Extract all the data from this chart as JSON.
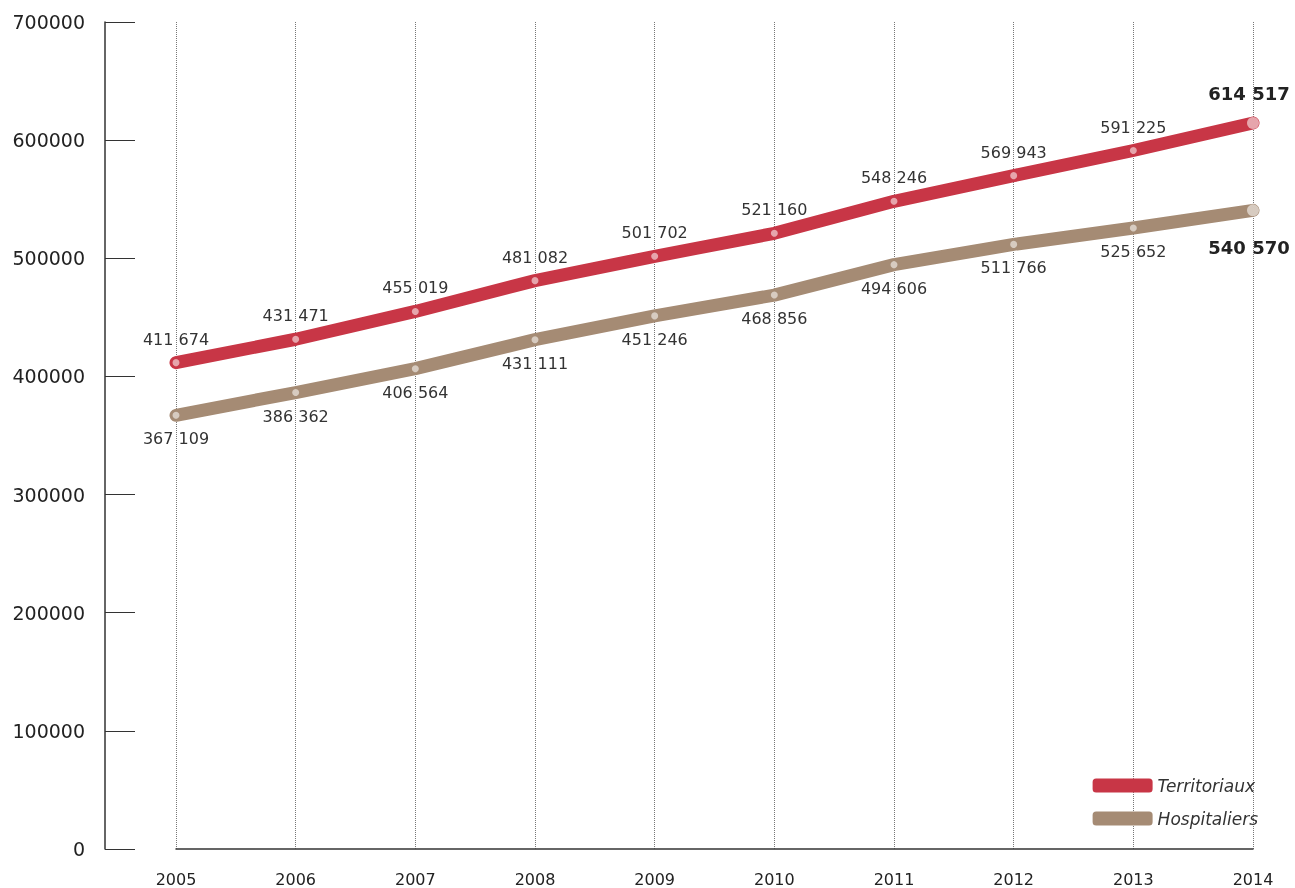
{
  "chart_data": {
    "type": "line",
    "categories": [
      "2005",
      "2006",
      "2007",
      "2008",
      "2009",
      "2010",
      "2011",
      "2012",
      "2013",
      "2014"
    ],
    "series": [
      {
        "name": "Territoriaux",
        "color": "#c83646",
        "values": [
          411674,
          431471,
          455019,
          481082,
          501702,
          521160,
          548246,
          569943,
          591225,
          614517
        ],
        "value_labels": [
          "411 674",
          "431 471",
          "455 019",
          "481 082",
          "501 702",
          "521 160",
          "548 246",
          "569 943",
          "591 225",
          "614 517"
        ]
      },
      {
        "name": "Hospitaliers",
        "color": "#a58b74",
        "values": [
          367109,
          386362,
          406564,
          431111,
          451246,
          468856,
          494606,
          511766,
          525652,
          540570
        ],
        "value_labels": [
          "367 109",
          "386 362",
          "406 564",
          "431 111",
          "451 246",
          "468 856",
          "494 606",
          "511 766",
          "525 652",
          "540 570"
        ]
      }
    ],
    "ylim": [
      0,
      700000
    ],
    "yticks": [
      0,
      100000,
      200000,
      300000,
      400000,
      500000,
      600000,
      700000
    ],
    "grid": "x",
    "legend": "bottom right",
    "marker": "circle",
    "line_style": "solid"
  }
}
